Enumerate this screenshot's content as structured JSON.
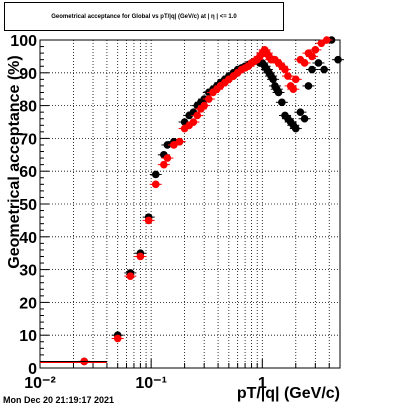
{
  "timestamp": "Mon Dec 20 21:19:17 2021",
  "chart_data": {
    "type": "scatter",
    "title": "Geometrical acceptance for Global vs pT/|q| (GeV/c) at | η | <= 1.0",
    "xlabel": "pT/|q| (GeV/c)",
    "ylabel": "Geometrical acceptance (%)",
    "xscale": "log",
    "xlim": [
      0.01,
      5.0
    ],
    "ylim": [
      0,
      100
    ],
    "grid": true,
    "xticks": [
      {
        "value": 0.01,
        "label": "10⁻²"
      },
      {
        "value": 0.1,
        "label": "10⁻¹"
      },
      {
        "value": 1,
        "label": "1"
      }
    ],
    "yticks": [
      0,
      10,
      20,
      30,
      40,
      50,
      60,
      70,
      80,
      90,
      100
    ],
    "series": [
      {
        "color": "#000000",
        "points": [
          [
            0.025,
            2
          ],
          [
            0.05,
            10
          ],
          [
            0.065,
            29
          ],
          [
            0.08,
            35
          ],
          [
            0.095,
            46
          ],
          [
            0.11,
            59
          ],
          [
            0.13,
            65
          ],
          [
            0.14,
            68
          ],
          [
            0.16,
            69
          ],
          [
            0.18,
            69
          ],
          [
            0.2,
            75
          ],
          [
            0.22,
            77
          ],
          [
            0.24,
            78
          ],
          [
            0.26,
            80
          ],
          [
            0.28,
            81
          ],
          [
            0.3,
            82
          ],
          [
            0.33,
            84
          ],
          [
            0.36,
            85
          ],
          [
            0.39,
            86
          ],
          [
            0.42,
            87
          ],
          [
            0.46,
            88
          ],
          [
            0.5,
            89
          ],
          [
            0.55,
            90
          ],
          [
            0.6,
            91
          ],
          [
            0.65,
            91.5
          ],
          [
            0.7,
            92
          ],
          [
            0.75,
            92.5
          ],
          [
            0.8,
            93
          ],
          [
            0.85,
            93.5
          ],
          [
            0.9,
            94
          ],
          [
            0.95,
            93
          ],
          [
            1.0,
            93
          ],
          [
            1.05,
            92
          ],
          [
            1.1,
            91
          ],
          [
            1.15,
            90
          ],
          [
            1.2,
            89
          ],
          [
            1.25,
            88
          ],
          [
            1.3,
            86
          ],
          [
            1.35,
            85
          ],
          [
            1.4,
            84
          ],
          [
            1.5,
            81
          ],
          [
            1.6,
            77
          ],
          [
            1.7,
            76
          ],
          [
            1.8,
            75
          ],
          [
            1.9,
            74
          ],
          [
            2.0,
            73
          ],
          [
            2.2,
            78
          ],
          [
            2.4,
            76
          ],
          [
            2.6,
            86
          ],
          [
            2.8,
            91
          ],
          [
            3.2,
            93
          ],
          [
            3.6,
            91
          ],
          [
            4.2,
            100
          ],
          [
            4.8,
            94
          ]
        ]
      },
      {
        "color": "#ff0000",
        "points": [
          [
            0.025,
            2
          ],
          [
            0.05,
            9
          ],
          [
            0.065,
            28
          ],
          [
            0.08,
            34
          ],
          [
            0.095,
            45
          ],
          [
            0.11,
            56
          ],
          [
            0.13,
            62
          ],
          [
            0.14,
            64
          ],
          [
            0.16,
            68
          ],
          [
            0.18,
            69
          ],
          [
            0.2,
            73
          ],
          [
            0.22,
            74
          ],
          [
            0.24,
            75
          ],
          [
            0.26,
            77
          ],
          [
            0.28,
            79
          ],
          [
            0.3,
            80
          ],
          [
            0.33,
            82
          ],
          [
            0.36,
            84
          ],
          [
            0.39,
            85
          ],
          [
            0.42,
            86
          ],
          [
            0.46,
            87
          ],
          [
            0.5,
            88
          ],
          [
            0.55,
            89
          ],
          [
            0.6,
            90
          ],
          [
            0.65,
            91
          ],
          [
            0.7,
            91.5
          ],
          [
            0.75,
            92
          ],
          [
            0.8,
            93
          ],
          [
            0.85,
            93.5
          ],
          [
            0.9,
            94
          ],
          [
            0.95,
            95
          ],
          [
            1.0,
            96
          ],
          [
            1.05,
            97
          ],
          [
            1.1,
            96
          ],
          [
            1.15,
            95
          ],
          [
            1.2,
            94
          ],
          [
            1.3,
            94
          ],
          [
            1.4,
            93
          ],
          [
            1.5,
            92
          ],
          [
            1.6,
            91
          ],
          [
            1.7,
            89
          ],
          [
            1.8,
            86
          ],
          [
            1.9,
            85
          ],
          [
            2.0,
            88
          ],
          [
            2.2,
            94
          ],
          [
            2.4,
            93
          ],
          [
            2.6,
            96
          ],
          [
            2.8,
            95
          ],
          [
            3.0,
            97
          ],
          [
            3.4,
            99
          ],
          [
            3.8,
            100
          ]
        ]
      }
    ]
  }
}
